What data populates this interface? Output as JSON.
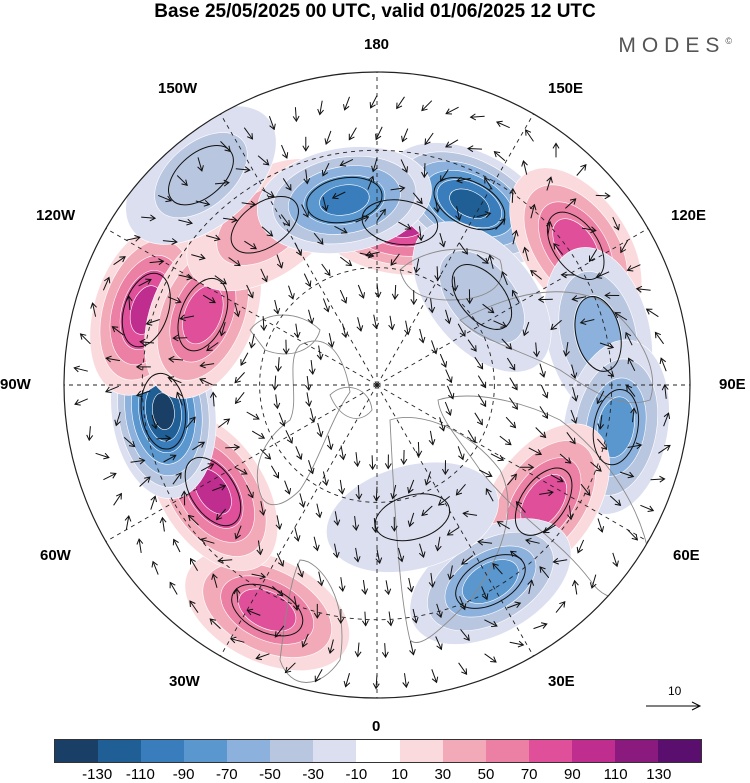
{
  "title": "Base 25/05/2025 00 UTC, valid 01/06/2025 12 UTC",
  "brand": "MODES",
  "brand_mark": "©",
  "longitude_labels": {
    "top": "180",
    "bottom": "0",
    "left": "90W",
    "right": "90E",
    "upper_left_1": "150W",
    "upper_left_2": "120W",
    "lower_left_1": "60W",
    "lower_left_2": "30W",
    "upper_right_1": "150E",
    "upper_right_2": "120E",
    "lower_right_1": "60E",
    "lower_right_2": "30E"
  },
  "vector_scale_label": "10",
  "colorbar": {
    "colors": [
      "#1a3f66",
      "#1f5f95",
      "#3a7dbd",
      "#5a97cf",
      "#8bb1dc",
      "#b9c6e0",
      "#dcdff0",
      "#ffffff",
      "#fadadd",
      "#f3aab8",
      "#ec7fa4",
      "#e0509a",
      "#bf2d8e",
      "#8b1a7e",
      "#5a0e6e"
    ],
    "ticks": [
      "-130",
      "-110",
      "-90",
      "-70",
      "-50",
      "-30",
      "-10",
      "10",
      "30",
      "50",
      "70",
      "90",
      "110",
      "130"
    ]
  },
  "anomalies": [
    {
      "lon": 172,
      "lat": 48,
      "value": 110
    },
    {
      "lon": 153,
      "lat": 38,
      "value": -120
    },
    {
      "lon": 125,
      "lat": 28,
      "value": 85
    },
    {
      "lon": 103,
      "lat": 32,
      "value": -60
    },
    {
      "lon": 80,
      "lat": 28,
      "value": -80
    },
    {
      "lon": 55,
      "lat": 38,
      "value": 90
    },
    {
      "lon": 30,
      "lat": 32,
      "value": -85
    },
    {
      "lon": -26,
      "lat": 26,
      "value": 90
    },
    {
      "lon": -57,
      "lat": 40,
      "value": 115
    },
    {
      "lon": -83,
      "lat": 35,
      "value": -140
    },
    {
      "lon": -108,
      "lat": 28,
      "value": 110
    },
    {
      "lon": -112,
      "lat": 42,
      "value": 90
    },
    {
      "lon": -145,
      "lat": 40,
      "value": 40
    },
    {
      "lon": -170,
      "lat": 42,
      "value": -100
    },
    {
      "lon": -140,
      "lat": 20,
      "value": -40
    },
    {
      "lon": 130,
      "lat": 55,
      "value": -40
    },
    {
      "lon": 15,
      "lat": 55,
      "value": -30
    }
  ]
}
